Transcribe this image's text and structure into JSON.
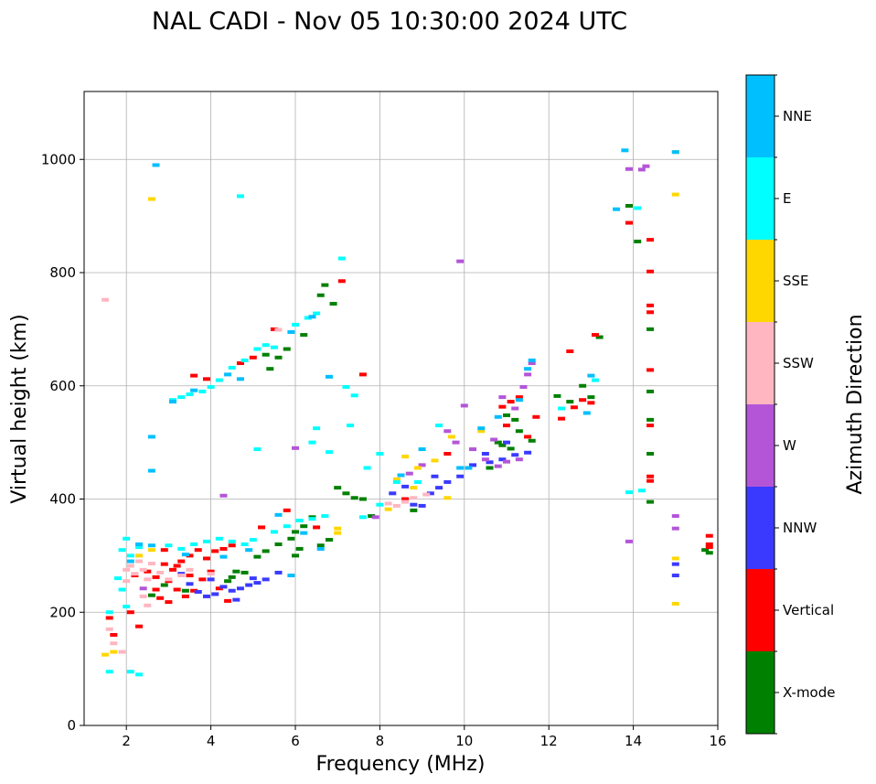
{
  "chart_data": {
    "type": "scatter",
    "title": "NAL CADI - Nov 05 10:30:00 2024 UTC",
    "xlabel": "Frequency (MHz)",
    "ylabel": "Virtual height (km)",
    "xlim": [
      1,
      16
    ],
    "ylim": [
      0,
      1120
    ],
    "grid": true,
    "x_ticks": [
      "2",
      "4",
      "6",
      "8",
      "10",
      "12",
      "14",
      "16"
    ],
    "y_ticks": [
      "0",
      "200",
      "400",
      "600",
      "800",
      "1000"
    ],
    "colorbar": {
      "label": "Azimuth Direction",
      "categories": [
        "X-mode",
        "Vertical",
        "NNW",
        "W",
        "SSW",
        "SSE",
        "E",
        "NNE"
      ],
      "colors": [
        "#008000",
        "#ff0000",
        "#3a3aff",
        "#b455d8",
        "#ffb6c1",
        "#ffd700",
        "#00ffff",
        "#00bfff"
      ]
    },
    "series": [
      {
        "name": "X-mode",
        "points": [
          [
            5.3,
            655
          ],
          [
            5.6,
            650
          ],
          [
            5.4,
            630
          ],
          [
            5.8,
            665
          ],
          [
            6.2,
            690
          ],
          [
            6.6,
            760
          ],
          [
            6.9,
            745
          ],
          [
            6.7,
            778
          ],
          [
            7.0,
            420
          ],
          [
            7.2,
            410
          ],
          [
            7.4,
            402
          ],
          [
            7.6,
            400
          ],
          [
            6.4,
            368
          ],
          [
            6.2,
            352
          ],
          [
            6.0,
            342
          ],
          [
            5.6,
            320
          ],
          [
            5.3,
            308
          ],
          [
            5.1,
            298
          ],
          [
            4.6,
            272
          ],
          [
            4.5,
            262
          ],
          [
            4.4,
            255
          ],
          [
            6.8,
            328
          ],
          [
            6.6,
            318
          ],
          [
            6.0,
            300
          ],
          [
            10.8,
            500
          ],
          [
            10.9,
            495
          ],
          [
            11.1,
            489
          ],
          [
            11.3,
            520
          ],
          [
            11.2,
            540
          ],
          [
            11.0,
            548
          ],
          [
            12.5,
            572
          ],
          [
            13.0,
            580
          ],
          [
            12.8,
            600
          ],
          [
            13.9,
            918
          ],
          [
            14.1,
            855
          ],
          [
            14.4,
            590
          ],
          [
            14.4,
            700
          ],
          [
            14.4,
            540
          ],
          [
            14.4,
            480
          ],
          [
            14.4,
            395
          ],
          [
            15.8,
            305
          ],
          [
            15.7,
            310
          ],
          [
            2.6,
            230
          ],
          [
            2.9,
            248
          ],
          [
            3.4,
            238
          ],
          [
            13.2,
            686
          ],
          [
            12.2,
            582
          ],
          [
            8.8,
            380
          ],
          [
            7.8,
            370
          ],
          [
            6.1,
            312
          ],
          [
            5.9,
            330
          ],
          [
            4.8,
            270
          ],
          [
            10.6,
            455
          ],
          [
            11.6,
            503
          ]
        ]
      },
      {
        "name": "Vertical",
        "points": [
          [
            2.5,
            272
          ],
          [
            2.7,
            262
          ],
          [
            2.9,
            285
          ],
          [
            3.1,
            275
          ],
          [
            3.3,
            290
          ],
          [
            3.5,
            300
          ],
          [
            3.7,
            310
          ],
          [
            3.9,
            295
          ],
          [
            4.1,
            308
          ],
          [
            4.3,
            312
          ],
          [
            4.5,
            318
          ],
          [
            3.0,
            255
          ],
          [
            3.2,
            240
          ],
          [
            3.4,
            228
          ],
          [
            3.6,
            238
          ],
          [
            2.7,
            240
          ],
          [
            2.8,
            225
          ],
          [
            3.0,
            218
          ],
          [
            4.2,
            242
          ],
          [
            3.5,
            265
          ],
          [
            3.8,
            258
          ],
          [
            4.0,
            272
          ],
          [
            3.6,
            618
          ],
          [
            3.9,
            612
          ],
          [
            4.7,
            640
          ],
          [
            5.0,
            650
          ],
          [
            5.5,
            700
          ],
          [
            7.1,
            785
          ],
          [
            2.2,
            265
          ],
          [
            2.1,
            200
          ],
          [
            2.3,
            175
          ],
          [
            1.6,
            190
          ],
          [
            1.7,
            160
          ],
          [
            10.9,
            563
          ],
          [
            11.1,
            572
          ],
          [
            11.3,
            580
          ],
          [
            11.0,
            530
          ],
          [
            11.5,
            510
          ],
          [
            11.7,
            545
          ],
          [
            12.3,
            542
          ],
          [
            12.6,
            562
          ],
          [
            12.8,
            575
          ],
          [
            13.0,
            570
          ],
          [
            14.4,
            432
          ],
          [
            14.4,
            440
          ],
          [
            14.4,
            530
          ],
          [
            14.4,
            628
          ],
          [
            14.4,
            730
          ],
          [
            14.4,
            742
          ],
          [
            14.4,
            802
          ],
          [
            14.4,
            858
          ],
          [
            13.9,
            888
          ],
          [
            15.8,
            335
          ],
          [
            15.8,
            320
          ],
          [
            15.8,
            315
          ],
          [
            12.5,
            661
          ],
          [
            13.1,
            690
          ],
          [
            9.6,
            480
          ],
          [
            8.6,
            400
          ],
          [
            6.5,
            350
          ],
          [
            7.6,
            620
          ],
          [
            5.8,
            380
          ],
          [
            5.2,
            350
          ],
          [
            2.9,
            310
          ],
          [
            3.2,
            282
          ],
          [
            4.4,
            220
          ]
        ]
      },
      {
        "name": "NNW",
        "points": [
          [
            4.3,
            245
          ],
          [
            4.5,
            238
          ],
          [
            4.7,
            242
          ],
          [
            4.9,
            248
          ],
          [
            5.1,
            252
          ],
          [
            5.3,
            258
          ],
          [
            4.1,
            232
          ],
          [
            3.9,
            228
          ],
          [
            3.7,
            236
          ],
          [
            3.5,
            250
          ],
          [
            4.6,
            222
          ],
          [
            5.0,
            260
          ],
          [
            8.8,
            390
          ],
          [
            9.2,
            410
          ],
          [
            9.4,
            420
          ],
          [
            9.6,
            430
          ],
          [
            9.9,
            440
          ],
          [
            10.2,
            460
          ],
          [
            10.6,
            465
          ],
          [
            10.9,
            470
          ],
          [
            11.2,
            478
          ],
          [
            11.5,
            482
          ],
          [
            9.0,
            388
          ],
          [
            8.6,
            422
          ],
          [
            8.3,
            410
          ],
          [
            15.0,
            265
          ],
          [
            15.0,
            285
          ],
          [
            5.6,
            270
          ],
          [
            4.0,
            258
          ],
          [
            3.3,
            268
          ],
          [
            10.5,
            480
          ],
          [
            11.0,
            500
          ],
          [
            9.3,
            440
          ]
        ]
      },
      {
        "name": "W",
        "points": [
          [
            10.5,
            470
          ],
          [
            10.8,
            458
          ],
          [
            11.0,
            466
          ],
          [
            11.3,
            470
          ],
          [
            10.2,
            488
          ],
          [
            10.7,
            505
          ],
          [
            11.4,
            598
          ],
          [
            11.5,
            620
          ],
          [
            11.6,
            640
          ],
          [
            10.0,
            565
          ],
          [
            9.8,
            500
          ],
          [
            9.6,
            520
          ],
          [
            9.0,
            460
          ],
          [
            8.7,
            445
          ],
          [
            13.9,
            983
          ],
          [
            14.2,
            982
          ],
          [
            13.9,
            325
          ],
          [
            15.0,
            348
          ],
          [
            15.0,
            370
          ],
          [
            14.3,
            988
          ],
          [
            9.9,
            820
          ],
          [
            4.3,
            406
          ],
          [
            2.4,
            242
          ],
          [
            10.9,
            580
          ],
          [
            11.2,
            560
          ],
          [
            6.0,
            490
          ],
          [
            7.9,
            368
          ]
        ]
      },
      {
        "name": "SSW",
        "points": [
          [
            1.5,
            752
          ],
          [
            2.0,
            275
          ],
          [
            2.1,
            282
          ],
          [
            2.2,
            268
          ],
          [
            2.3,
            290
          ],
          [
            2.4,
            275
          ],
          [
            2.5,
            258
          ],
          [
            2.6,
            286
          ],
          [
            2.8,
            270
          ],
          [
            2.0,
            255
          ],
          [
            2.4,
            228
          ],
          [
            2.5,
            212
          ],
          [
            3.0,
            258
          ],
          [
            3.3,
            265
          ],
          [
            8.2,
            392
          ],
          [
            8.4,
            388
          ],
          [
            8.6,
            395
          ],
          [
            8.8,
            402
          ],
          [
            9.1,
            408
          ],
          [
            5.6,
            699
          ],
          [
            1.6,
            170
          ],
          [
            1.7,
            145
          ],
          [
            1.9,
            130
          ],
          [
            4.0,
            268
          ],
          [
            3.5,
            275
          ]
        ]
      },
      {
        "name": "SSE",
        "points": [
          [
            2.6,
            930
          ],
          [
            7.0,
            340
          ],
          [
            7.0,
            348
          ],
          [
            8.6,
            475
          ],
          [
            8.9,
            455
          ],
          [
            9.3,
            468
          ],
          [
            9.6,
            402
          ],
          [
            8.2,
            382
          ],
          [
            1.7,
            130
          ],
          [
            1.5,
            125
          ],
          [
            2.3,
            300
          ],
          [
            2.6,
            310
          ],
          [
            15.0,
            1013
          ],
          [
            15.0,
            938
          ],
          [
            15.0,
            295
          ],
          [
            15.0,
            215
          ],
          [
            10.4,
            520
          ],
          [
            9.7,
            510
          ],
          [
            8.8,
            420
          ],
          [
            8.4,
            435
          ]
        ]
      },
      {
        "name": "E",
        "points": [
          [
            3.1,
            575
          ],
          [
            3.3,
            580
          ],
          [
            3.5,
            585
          ],
          [
            3.8,
            590
          ],
          [
            4.0,
            598
          ],
          [
            4.2,
            610
          ],
          [
            4.5,
            632
          ],
          [
            4.8,
            645
          ],
          [
            5.1,
            665
          ],
          [
            5.3,
            672
          ],
          [
            5.5,
            668
          ],
          [
            6.0,
            708
          ],
          [
            6.3,
            720
          ],
          [
            6.5,
            728
          ],
          [
            7.1,
            825
          ],
          [
            7.2,
            598
          ],
          [
            7.4,
            583
          ],
          [
            6.5,
            525
          ],
          [
            6.4,
            500
          ],
          [
            6.8,
            483
          ],
          [
            7.7,
            455
          ],
          [
            8.0,
            480
          ],
          [
            8.4,
            430
          ],
          [
            8.9,
            430
          ],
          [
            3.0,
            318
          ],
          [
            3.3,
            312
          ],
          [
            3.6,
            320
          ],
          [
            3.9,
            325
          ],
          [
            4.2,
            330
          ],
          [
            4.5,
            325
          ],
          [
            4.8,
            320
          ],
          [
            5.0,
            328
          ],
          [
            5.5,
            342
          ],
          [
            5.8,
            352
          ],
          [
            6.1,
            362
          ],
          [
            6.4,
            365
          ],
          [
            6.7,
            370
          ],
          [
            2.0,
            330
          ],
          [
            1.9,
            310
          ],
          [
            2.1,
            300
          ],
          [
            1.9,
            240
          ],
          [
            2.0,
            210
          ],
          [
            1.6,
            95
          ],
          [
            2.1,
            95
          ],
          [
            2.3,
            90
          ],
          [
            1.8,
            260
          ],
          [
            2.3,
            315
          ],
          [
            5.1,
            488
          ],
          [
            4.7,
            935
          ],
          [
            7.3,
            530
          ],
          [
            13.9,
            412
          ],
          [
            14.2,
            415
          ],
          [
            14.1,
            914
          ],
          [
            8.0,
            390
          ],
          [
            7.6,
            368
          ],
          [
            12.3,
            560
          ],
          [
            13.1,
            610
          ],
          [
            9.4,
            530
          ],
          [
            1.6,
            200
          ]
        ]
      },
      {
        "name": "NNE",
        "points": [
          [
            2.7,
            990
          ],
          [
            2.6,
            510
          ],
          [
            2.6,
            450
          ],
          [
            3.1,
            572
          ],
          [
            3.6,
            592
          ],
          [
            4.4,
            620
          ],
          [
            4.7,
            612
          ],
          [
            5.9,
            695
          ],
          [
            6.4,
            722
          ],
          [
            6.8,
            616
          ],
          [
            5.6,
            372
          ],
          [
            6.2,
            340
          ],
          [
            6.6,
            312
          ],
          [
            2.1,
            290
          ],
          [
            2.3,
            320
          ],
          [
            2.6,
            318
          ],
          [
            3.4,
            302
          ],
          [
            4.3,
            298
          ],
          [
            5.9,
            265
          ],
          [
            10.1,
            455
          ],
          [
            10.4,
            525
          ],
          [
            10.8,
            545
          ],
          [
            11.3,
            575
          ],
          [
            11.5,
            630
          ],
          [
            11.6,
            645
          ],
          [
            13.0,
            618
          ],
          [
            12.9,
            552
          ],
          [
            13.8,
            1016
          ],
          [
            13.6,
            912
          ],
          [
            15.0,
            1013
          ],
          [
            4.9,
            310
          ],
          [
            8.5,
            442
          ],
          [
            9.0,
            488
          ],
          [
            9.9,
            455
          ]
        ]
      }
    ]
  }
}
